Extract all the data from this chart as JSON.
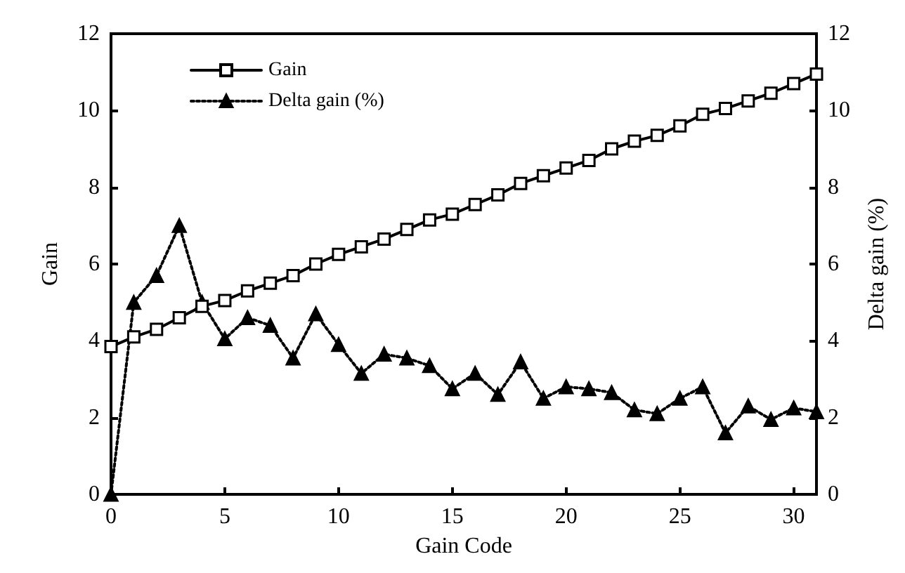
{
  "chart_data": {
    "type": "line",
    "xlabel": "Gain Code",
    "ylabel": "Gain",
    "y2label": "Delta gain (%)",
    "x": [
      0,
      1,
      2,
      3,
      4,
      5,
      6,
      7,
      8,
      9,
      10,
      11,
      12,
      13,
      14,
      15,
      16,
      17,
      18,
      19,
      20,
      21,
      22,
      23,
      24,
      25,
      26,
      27,
      28,
      29,
      30,
      31
    ],
    "xlim": [
      0,
      31
    ],
    "xticks": [
      0,
      5,
      10,
      15,
      20,
      25,
      30
    ],
    "ylim": [
      0,
      12
    ],
    "yticks": [
      0,
      2,
      4,
      6,
      8,
      10,
      12
    ],
    "y2lim": [
      0,
      12
    ],
    "y2ticks": [
      0,
      2,
      4,
      6,
      8,
      10,
      12
    ],
    "grid": false,
    "legend": "top left",
    "series": [
      {
        "name": "Gain",
        "color": "#000000",
        "marker": "square",
        "line_style": "solid",
        "values": [
          3.85,
          4.1,
          4.3,
          4.6,
          4.9,
          5.05,
          5.3,
          5.5,
          5.7,
          6.0,
          6.25,
          6.45,
          6.65,
          6.9,
          7.15,
          7.3,
          7.55,
          7.8,
          8.1,
          8.3,
          8.5,
          8.7,
          9.0,
          9.2,
          9.35,
          9.6,
          9.9,
          10.05,
          10.25,
          10.45,
          10.7,
          10.95
        ]
      },
      {
        "name": "Delta gain (%)",
        "color": "#000000",
        "marker": "triangle",
        "line_style": "dotted",
        "axis": "y2",
        "values": [
          0,
          5.0,
          5.7,
          7.0,
          5.0,
          4.05,
          4.6,
          4.4,
          3.55,
          4.7,
          3.9,
          3.15,
          3.65,
          3.55,
          3.35,
          2.75,
          3.15,
          2.6,
          3.45,
          2.5,
          2.8,
          2.75,
          2.65,
          2.2,
          2.1,
          2.5,
          2.8,
          1.6,
          2.3,
          1.95,
          2.25,
          2.15
        ]
      }
    ]
  }
}
